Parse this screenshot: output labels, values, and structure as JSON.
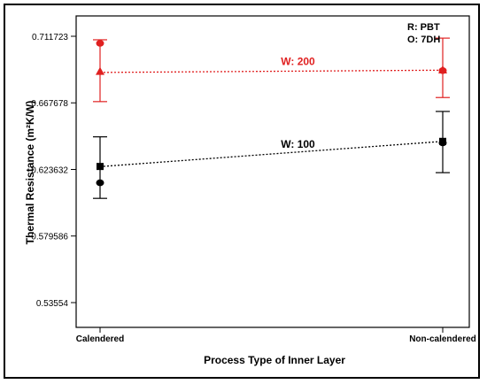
{
  "chart_data": {
    "type": "line",
    "xlabel": "Process Type of Inner Layer",
    "ylabel": "Thermal Resistance (m²K/W)",
    "categories": [
      "Calendered",
      "Non-calendered"
    ],
    "y_ticks": [
      "0.711723",
      "0.667678",
      "0.623632",
      "0.579586",
      "0.53554"
    ],
    "ylim": [
      0.53554,
      0.711723
    ],
    "legend_text": [
      "R: PBT",
      "O: 7DH"
    ],
    "series": [
      {
        "name": "W: 200",
        "color": "#e02020",
        "line": [
          0.6878,
          0.6893
        ],
        "error_upper": [
          0.7094,
          0.7105
        ],
        "error_lower": [
          0.6685,
          0.6712
        ],
        "markers": [
          {
            "shape": "circle",
            "values": [
              0.7071,
              0.689
            ]
          },
          {
            "shape": "triangle",
            "values": [
              0.6885,
              0.6895
            ]
          }
        ]
      },
      {
        "name": "W: 100",
        "color": "#000000",
        "line": [
          0.6255,
          0.6422
        ],
        "error_upper": [
          0.6452,
          0.662
        ],
        "error_lower": [
          0.6045,
          0.6215
        ],
        "markers": [
          {
            "shape": "circle",
            "values": [
              0.6148,
              0.6412
            ]
          },
          {
            "shape": "square",
            "values": [
              0.6256,
              0.6422
            ]
          }
        ]
      }
    ]
  }
}
